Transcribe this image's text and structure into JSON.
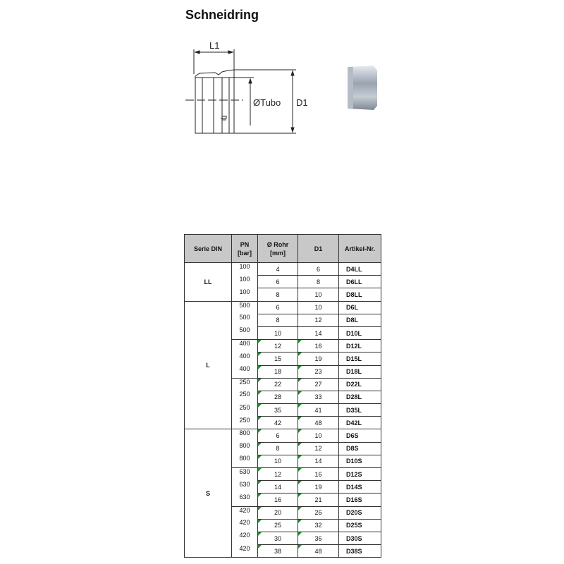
{
  "title": "Schneidring",
  "drawing": {
    "l1_label": "L1",
    "tubo_label": "ØTubo",
    "d1_label": "D1"
  },
  "table": {
    "headers": {
      "serie": "Serie DIN",
      "pn": [
        "PN",
        "[bar]"
      ],
      "rohr": [
        "Ø Rohr",
        "[mm]"
      ],
      "d1": "D1",
      "artikel": "Artikel-Nr."
    },
    "indicator_color": "#1d8a2a",
    "groups": [
      {
        "serie": "LL",
        "pn_groups": [
          {
            "pn": "100",
            "flag": false,
            "rows": [
              [
                "4",
                "6",
                "D4LL"
              ],
              [
                "6",
                "8",
                "D6LL"
              ],
              [
                "8",
                "10",
                "D8LL"
              ]
            ]
          }
        ]
      },
      {
        "serie": "L",
        "pn_groups": [
          {
            "pn": "500",
            "flag": false,
            "rows": [
              [
                "6",
                "10",
                "D6L"
              ],
              [
                "8",
                "12",
                "D8L"
              ],
              [
                "10",
                "14",
                "D10L"
              ]
            ]
          },
          {
            "pn": "400",
            "flag": true,
            "rows": [
              [
                "12",
                "16",
                "D12L"
              ],
              [
                "15",
                "19",
                "D15L"
              ],
              [
                "18",
                "23",
                "D18L"
              ]
            ]
          },
          {
            "pn": "250",
            "flag": true,
            "rows": [
              [
                "22",
                "27",
                "D22L"
              ],
              [
                "28",
                "33",
                "D28L"
              ],
              [
                "35",
                "41",
                "D35L"
              ],
              [
                "42",
                "48",
                "D42L"
              ]
            ]
          }
        ]
      },
      {
        "serie": "S",
        "pn_groups": [
          {
            "pn": "800",
            "flag": true,
            "rows": [
              [
                "6",
                "10",
                "D6S"
              ],
              [
                "8",
                "12",
                "D8S"
              ],
              [
                "10",
                "14",
                "D10S"
              ]
            ]
          },
          {
            "pn": "630",
            "flag": true,
            "rows": [
              [
                "12",
                "16",
                "D12S"
              ],
              [
                "14",
                "19",
                "D14S"
              ],
              [
                "16",
                "21",
                "D16S"
              ]
            ]
          },
          {
            "pn": "420",
            "flag": true,
            "rows": [
              [
                "20",
                "26",
                "D20S"
              ],
              [
                "25",
                "32",
                "D25S"
              ],
              [
                "30",
                "36",
                "D30S"
              ],
              [
                "38",
                "48",
                "D38S"
              ]
            ]
          }
        ]
      }
    ]
  }
}
